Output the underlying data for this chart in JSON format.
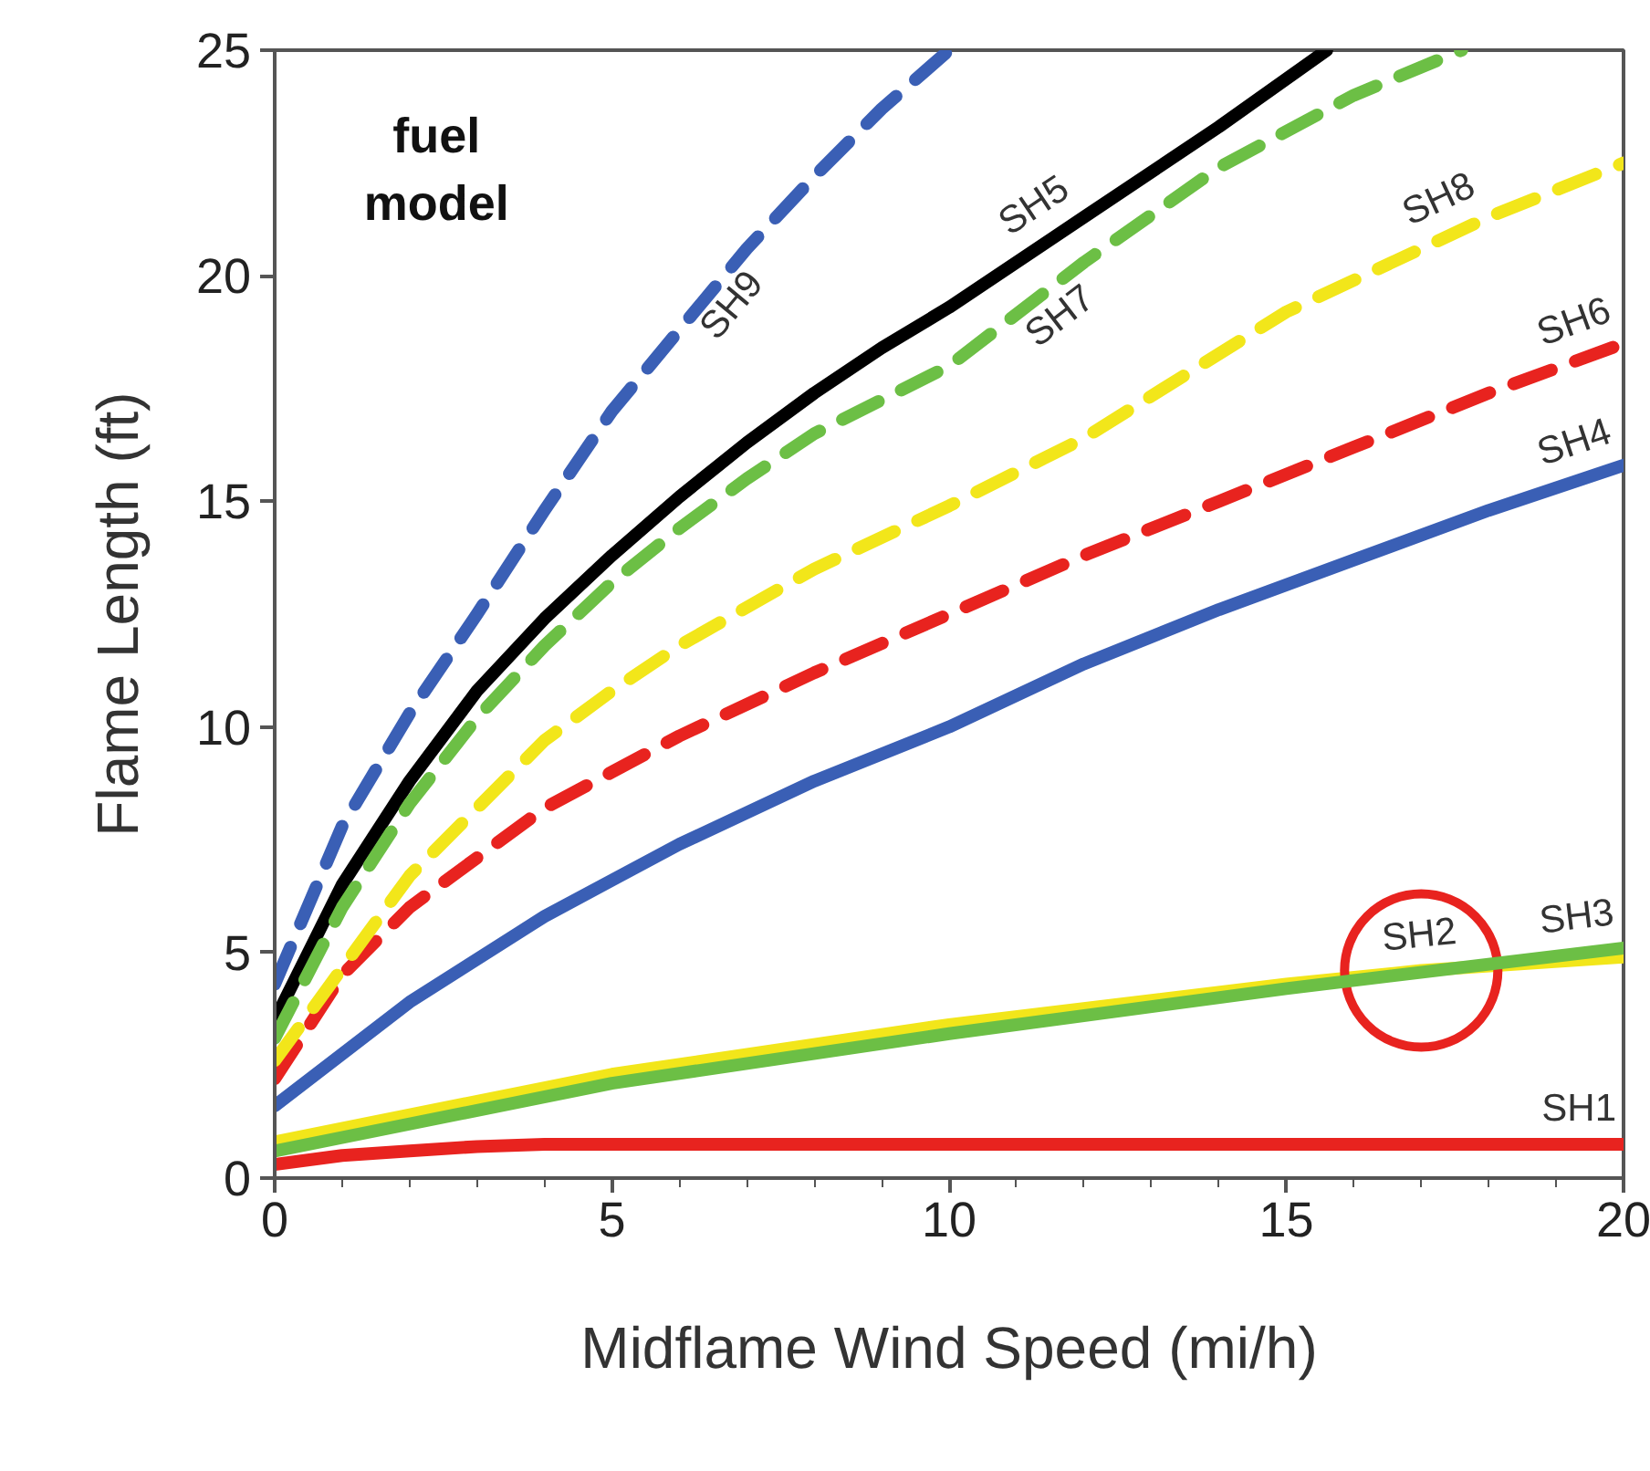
{
  "chart_data": {
    "type": "line",
    "xlabel": "Midflame Wind Speed (mi/h)",
    "ylabel": "Flame Length (ft)",
    "xlim": [
      0,
      20
    ],
    "ylim": [
      0,
      25
    ],
    "xticks": [
      0,
      {
        "value": 1,
        "label": null
      },
      {
        "value": 2,
        "label": null
      },
      {
        "value": 3,
        "label": null
      },
      {
        "value": 4,
        "label": null
      },
      5,
      {
        "value": 6,
        "label": null
      },
      {
        "value": 7,
        "label": null
      },
      {
        "value": 8,
        "label": null
      },
      {
        "value": 9,
        "label": null
      },
      10,
      {
        "value": 11,
        "label": null
      },
      {
        "value": 12,
        "label": null
      },
      {
        "value": 13,
        "label": null
      },
      {
        "value": 14,
        "label": null
      },
      15,
      {
        "value": 16,
        "label": null
      },
      {
        "value": 17,
        "label": null
      },
      {
        "value": 18,
        "label": null
      },
      {
        "value": 19,
        "label": null
      },
      20
    ],
    "yticks": [
      0,
      5,
      10,
      15,
      20,
      25
    ],
    "grid": false,
    "legend": false,
    "marker": "none",
    "annotations": [
      "fuel model"
    ],
    "series": [
      {
        "name": "SH1",
        "color": "#e8231f",
        "line_style": "solid",
        "x": [
          0,
          1,
          2,
          3,
          4,
          20
        ],
        "values": [
          0.3,
          0.5,
          0.6,
          0.7,
          0.75,
          0.75
        ]
      },
      {
        "name": "SH2",
        "color": "#f2e61a",
        "line_style": "solid",
        "x": [
          0,
          5,
          10,
          15,
          17,
          20
        ],
        "values": [
          0.8,
          2.3,
          3.4,
          4.3,
          4.6,
          4.9
        ]
      },
      {
        "name": "SH3",
        "color": "#6cbf45",
        "line_style": "solid",
        "x": [
          0,
          5,
          10,
          15,
          20
        ],
        "values": [
          0.6,
          2.1,
          3.2,
          4.2,
          5.1
        ]
      },
      {
        "name": "SH4",
        "color": "#3a5fb5",
        "line_style": "solid",
        "x": [
          0,
          2,
          4,
          5,
          6,
          8,
          10,
          12,
          14,
          16,
          18,
          20
        ],
        "values": [
          1.6,
          3.9,
          5.8,
          6.6,
          7.4,
          8.8,
          10.0,
          11.4,
          12.6,
          13.7,
          14.8,
          15.8
        ]
      },
      {
        "name": "SH5",
        "color": "#000000",
        "line_style": "solid",
        "x": [
          0,
          1,
          2,
          3,
          4,
          5,
          6,
          7,
          8,
          9,
          10,
          12,
          14,
          15.6
        ],
        "values": [
          3.5,
          6.5,
          8.8,
          10.8,
          12.4,
          13.8,
          15.1,
          16.3,
          17.4,
          18.4,
          19.3,
          21.3,
          23.3,
          25
        ]
      },
      {
        "name": "SH6",
        "color": "#e8231f",
        "line_style": "dashed",
        "x": [
          0,
          1,
          2,
          4,
          5,
          6,
          8,
          10,
          12,
          14,
          16,
          18,
          20
        ],
        "values": [
          2.2,
          4.5,
          6.0,
          8.2,
          9.0,
          9.8,
          11.2,
          12.5,
          13.8,
          15.0,
          16.2,
          17.4,
          18.5
        ]
      },
      {
        "name": "SH7",
        "color": "#6cbf45",
        "line_style": "dashed",
        "x": [
          0,
          1,
          2,
          3,
          4,
          5,
          6,
          7,
          8,
          10,
          12,
          14,
          16,
          17.6
        ],
        "values": [
          3.1,
          6.0,
          8.3,
          10.2,
          11.8,
          13.2,
          14.4,
          15.5,
          16.5,
          18.0,
          20.3,
          22.4,
          24.0,
          25
        ]
      },
      {
        "name": "SH8",
        "color": "#f2e61a",
        "line_style": "dashed",
        "x": [
          0,
          2,
          4,
          5,
          6,
          8,
          10,
          12,
          15,
          18,
          20
        ],
        "values": [
          2.6,
          6.7,
          9.7,
          10.8,
          11.8,
          13.5,
          14.9,
          16.4,
          19.2,
          21.3,
          22.5
        ]
      },
      {
        "name": "SH9",
        "color": "#3a5fb5",
        "line_style": "dashed",
        "x": [
          0,
          1,
          2,
          3,
          4,
          5,
          6,
          7,
          8,
          9,
          10
        ],
        "values": [
          4.3,
          7.8,
          10.3,
          12.5,
          14.8,
          17.0,
          18.8,
          20.6,
          22.2,
          23.7,
          25
        ]
      }
    ]
  }
}
